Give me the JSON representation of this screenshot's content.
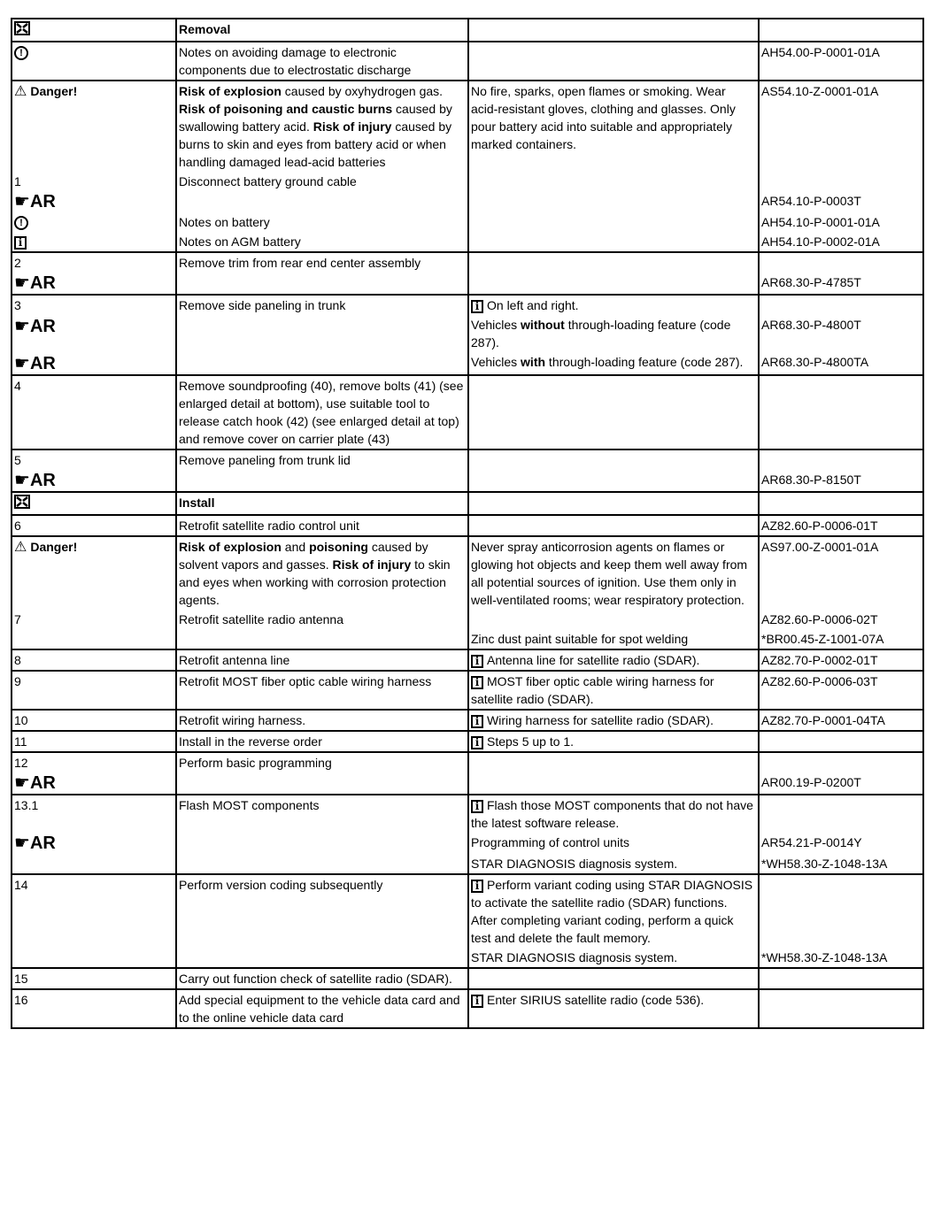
{
  "icons": {
    "ar_label": "AR",
    "info_glyph": "i",
    "esd_glyph": "!",
    "danger_label": "Danger!"
  },
  "rows": [
    {
      "segs": [
        [
          {
            "icon": "install-removal-icon"
          },
          {
            "runs": [
              {
                "t": "Removal",
                "b": true
              }
            ]
          },
          null,
          null
        ]
      ]
    },
    {
      "segs": [
        [
          {
            "icon": "esd-icon"
          },
          {
            "text": "Notes on avoiding damage to electronic components due to electrostatic discharge"
          },
          null,
          {
            "text": "AH54.00-P-0001-01A"
          }
        ]
      ]
    },
    {
      "segs": [
        [
          {
            "icon": "danger-icon"
          },
          {
            "runs": [
              {
                "t": "Risk of explosion",
                "b": true
              },
              {
                "t": "  caused by oxyhydrogen gas. "
              },
              {
                "t": "Risk of poisoning and caustic burns",
                "b": true
              },
              {
                "t": " caused by swallowing battery acid.  "
              },
              {
                "t": "Risk of injury",
                "b": true
              },
              {
                "t": " caused by burns to skin and eyes from battery acid or when handling damaged lead-acid batteries"
              }
            ]
          },
          {
            "text": "No fire, sparks, open flames or smoking. Wear acid-resistant gloves, clothing and glasses. Only pour battery acid into suitable and appropriately marked containers."
          },
          {
            "text": "AS54.10-Z-0001-01A"
          }
        ],
        [
          {
            "text": "1"
          },
          {
            "text": "Disconnect battery ground cable"
          },
          null,
          null
        ],
        [
          {
            "icon": "ar-icon"
          },
          null,
          null,
          {
            "text": "AR54.10-P-0003T"
          }
        ],
        [
          {
            "icon": "esd-icon"
          },
          {
            "text": "Notes on battery"
          },
          null,
          {
            "text": "AH54.10-P-0001-01A"
          }
        ],
        [
          {
            "icon": "info-icon"
          },
          {
            "text": "Notes on AGM battery"
          },
          null,
          {
            "text": "AH54.10-P-0002-01A"
          }
        ]
      ]
    },
    {
      "segs": [
        [
          {
            "text": "2"
          },
          {
            "text": "Remove trim from rear end center assembly"
          },
          null,
          null
        ],
        [
          {
            "icon": "ar-icon"
          },
          null,
          null,
          {
            "text": "AR68.30-P-4785T"
          }
        ]
      ]
    },
    {
      "segs": [
        [
          {
            "text": "3"
          },
          {
            "text": "Remove side paneling in trunk"
          },
          {
            "icon": "info-icon",
            "text": "On left and right."
          },
          null
        ],
        [
          {
            "icon": "ar-icon"
          },
          null,
          {
            "runs": [
              {
                "t": "Vehicles "
              },
              {
                "t": "without",
                "b": true
              },
              {
                "t": " through-loading feature (code 287)."
              }
            ]
          },
          {
            "text": "AR68.30-P-4800T"
          }
        ],
        [
          {
            "icon": "ar-icon"
          },
          null,
          {
            "runs": [
              {
                "t": "Vehicles "
              },
              {
                "t": "with",
                "b": true
              },
              {
                "t": " through-loading feature (code 287)."
              }
            ]
          },
          {
            "text": "AR68.30-P-4800TA"
          }
        ]
      ]
    },
    {
      "segs": [
        [
          {
            "text": "4"
          },
          {
            "text": "Remove soundproofing (40), remove bolts (41) (see enlarged detail at bottom), use suitable tool to release catch hook (42) (see enlarged detail at top) and remove cover on carrier plate (43)"
          },
          null,
          null
        ]
      ]
    },
    {
      "segs": [
        [
          {
            "text": "5"
          },
          {
            "text": "Remove paneling from trunk lid"
          },
          null,
          null
        ],
        [
          {
            "icon": "ar-icon"
          },
          null,
          null,
          {
            "text": "AR68.30-P-8150T"
          }
        ]
      ]
    },
    {
      "segs": [
        [
          {
            "icon": "install-removal-icon"
          },
          {
            "runs": [
              {
                "t": "Install",
                "b": true
              }
            ]
          },
          null,
          null
        ]
      ]
    },
    {
      "segs": [
        [
          {
            "text": "6"
          },
          {
            "text": "Retrofit satellite radio control unit"
          },
          null,
          {
            "text": "AZ82.60-P-0006-01T"
          }
        ]
      ]
    },
    {
      "segs": [
        [
          {
            "icon": "danger-icon"
          },
          {
            "runs": [
              {
                "t": "Risk of explosion",
                "b": true
              },
              {
                "t": "  and "
              },
              {
                "t": "poisoning",
                "b": true
              },
              {
                "t": " caused by solvent vapors and gasses.  "
              },
              {
                "t": "Risk of injury",
                "b": true
              },
              {
                "t": " to skin and eyes when working with corrosion protection agents."
              }
            ]
          },
          {
            "text": "Never spray anticorrosion agents on flames or glowing hot objects and keep them well away from all potential sources of ignition. Use them only in well-ventilated rooms; wear respiratory protection."
          },
          {
            "text": "AS97.00-Z-0001-01A"
          }
        ],
        [
          {
            "text": "7"
          },
          {
            "text": "Retrofit satellite radio antenna"
          },
          null,
          {
            "text": "AZ82.60-P-0006-02T"
          }
        ],
        [
          null,
          null,
          {
            "text": "Zinc dust paint suitable for spot welding"
          },
          {
            "text": "*BR00.45-Z-1001-07A"
          }
        ]
      ]
    },
    {
      "segs": [
        [
          {
            "text": "8"
          },
          {
            "text": "Retrofit antenna line"
          },
          {
            "icon": "info-icon",
            "text": "Antenna line for satellite radio (SDAR)."
          },
          {
            "text": "AZ82.70-P-0002-01T"
          }
        ]
      ]
    },
    {
      "segs": [
        [
          {
            "text": "9"
          },
          {
            "text": "Retrofit MOST fiber optic cable wiring harness"
          },
          {
            "icon": "info-icon",
            "text": "MOST fiber optic cable wiring harness for satellite radio (SDAR)."
          },
          {
            "text": "AZ82.60-P-0006-03T"
          }
        ]
      ]
    },
    {
      "segs": [
        [
          {
            "text": "10"
          },
          {
            "text": "Retrofit wiring harness."
          },
          {
            "icon": "info-icon",
            "text": "Wiring harness for satellite radio (SDAR)."
          },
          {
            "text": "AZ82.70-P-0001-04TA"
          }
        ]
      ]
    },
    {
      "segs": [
        [
          {
            "text": "11"
          },
          {
            "text": "Install in the reverse order"
          },
          {
            "icon": "info-icon",
            "text": "Steps 5 up to 1."
          },
          null
        ]
      ]
    },
    {
      "segs": [
        [
          {
            "text": "12"
          },
          {
            "text": "Perform basic programming"
          },
          null,
          null
        ],
        [
          {
            "icon": "ar-icon"
          },
          null,
          null,
          {
            "text": "AR00.19-P-0200T"
          }
        ]
      ]
    },
    {
      "segs": [
        [
          {
            "text": "13.1"
          },
          {
            "text": "Flash MOST components"
          },
          {
            "icon": "info-icon",
            "text": "Flash those MOST components that do not have the latest software release."
          },
          null
        ],
        [
          {
            "icon": "ar-icon"
          },
          null,
          {
            "text": "Programming of control units"
          },
          {
            "text": "AR54.21-P-0014Y"
          }
        ],
        [
          null,
          null,
          {
            "text": "STAR DIAGNOSIS diagnosis system."
          },
          {
            "text": "*WH58.30-Z-1048-13A"
          }
        ]
      ]
    },
    {
      "segs": [
        [
          {
            "text": "14"
          },
          {
            "text": "Perform version coding subsequently"
          },
          {
            "icon": "info-icon",
            "text": "Perform variant coding using STAR DIAGNOSIS to activate the satellite radio (SDAR) functions. After completing variant coding, perform a quick test and delete the fault memory."
          },
          null
        ],
        [
          null,
          null,
          {
            "text": "STAR DIAGNOSIS diagnosis system."
          },
          {
            "text": "*WH58.30-Z-1048-13A"
          }
        ]
      ]
    },
    {
      "segs": [
        [
          {
            "text": "15"
          },
          {
            "text": "Carry out function check of satellite radio (SDAR)."
          },
          null,
          null
        ]
      ]
    },
    {
      "segs": [
        [
          {
            "text": "16"
          },
          {
            "text": "Add special equipment to the vehicle data card and to the online vehicle data card"
          },
          {
            "icon": "info-icon",
            "text": "Enter SIRIUS satellite radio (code 536)."
          },
          null
        ]
      ]
    }
  ]
}
